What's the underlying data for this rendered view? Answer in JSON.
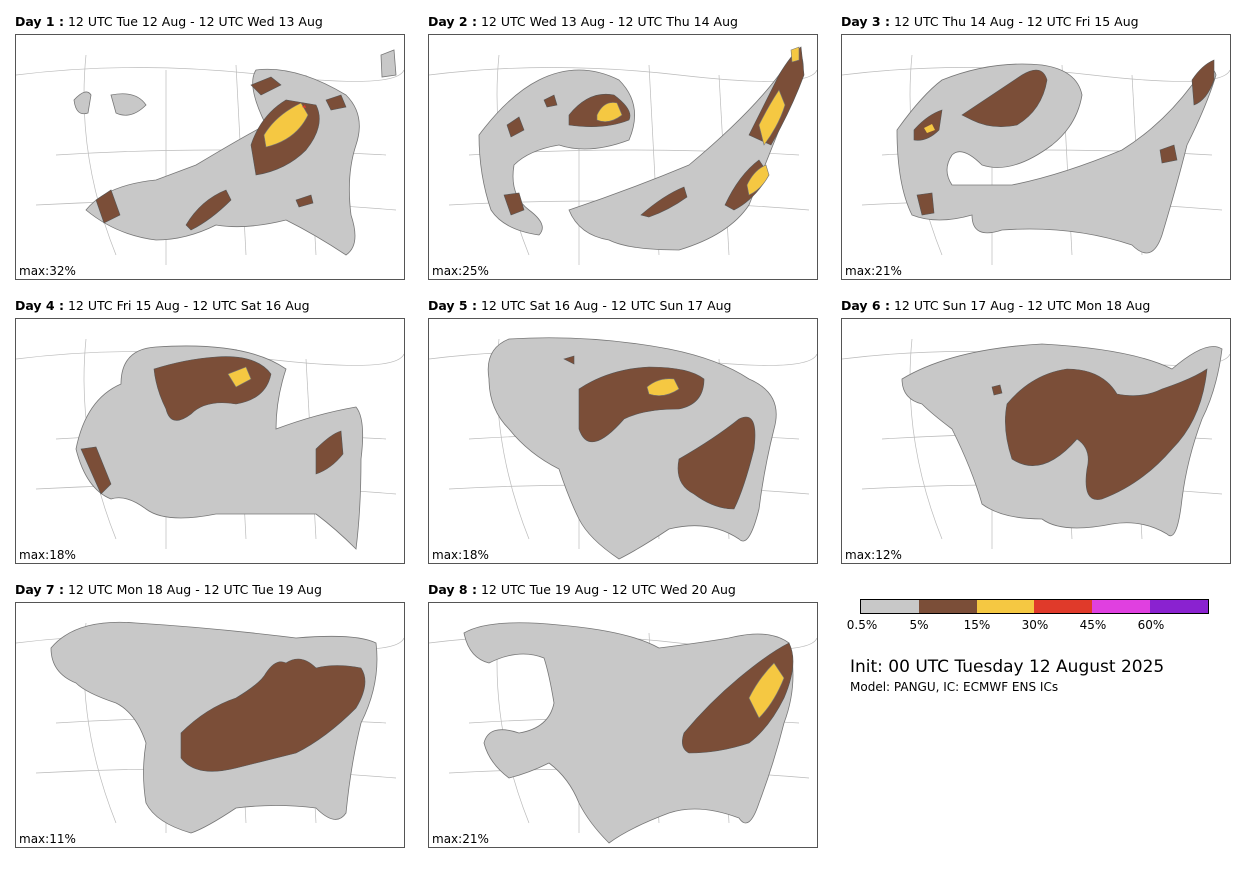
{
  "panels": [
    {
      "day_label": "Day 1 :",
      "period": "12 UTC Tue 12 Aug - 12 UTC Wed 13 Aug",
      "max_text": "max:32%"
    },
    {
      "day_label": "Day 2 :",
      "period": "12 UTC Wed 13 Aug - 12 UTC Thu 14 Aug",
      "max_text": "max:25%"
    },
    {
      "day_label": "Day 3 :",
      "period": "12 UTC Thu 14 Aug - 12 UTC Fri 15 Aug",
      "max_text": "max:21%"
    },
    {
      "day_label": "Day 4 :",
      "period": "12 UTC Fri 15 Aug - 12 UTC Sat 16 Aug",
      "max_text": "max:18%"
    },
    {
      "day_label": "Day 5 :",
      "period": "12 UTC Sat 16 Aug - 12 UTC Sun 17 Aug",
      "max_text": "max:18%"
    },
    {
      "day_label": "Day 6 :",
      "period": "12 UTC Sun 17 Aug - 12 UTC Mon 18 Aug",
      "max_text": "max:12%"
    },
    {
      "day_label": "Day 7 :",
      "period": "12 UTC Mon 18 Aug - 12 UTC Tue 19 Aug",
      "max_text": "max:11%"
    },
    {
      "day_label": "Day 8 :",
      "period": "12 UTC Tue 19 Aug - 12 UTC Wed 20 Aug",
      "max_text": "max:21%"
    }
  ],
  "legend": {
    "colors": [
      "#c8c8c8",
      "#7b4e38",
      "#f5c842",
      "#e03a2a",
      "#e040e0",
      "#8a22d0"
    ],
    "ticks": [
      "0.5%",
      "5%",
      "15%",
      "30%",
      "45%",
      "60%"
    ]
  },
  "init_text": "Init: 00 UTC Tuesday 12 August 2025",
  "model_text": "Model: PANGU, IC: ECMWF ENS ICs"
}
